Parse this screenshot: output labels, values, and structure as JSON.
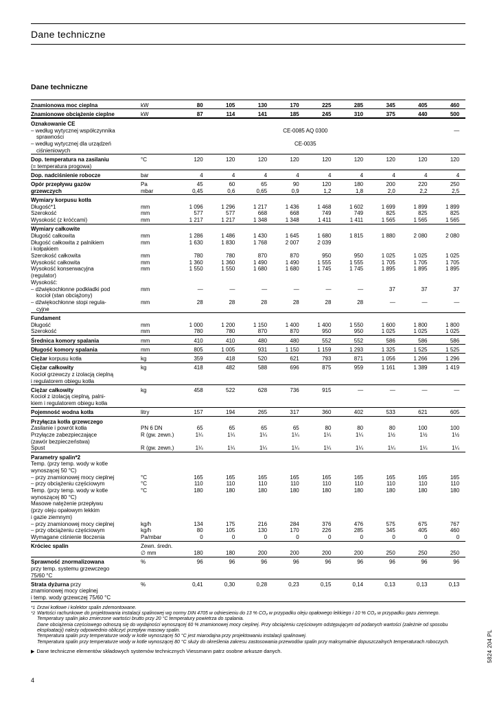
{
  "page": {
    "header_title": "Dane techniczne",
    "section_title": "Dane techniczne",
    "page_number": "4",
    "doc_code": "5824 204 PL"
  },
  "table": {
    "rows": [
      {
        "t": 1,
        "b": "Znamionowa moc cieplna",
        "u": "kW",
        "bv": true,
        "v": [
          "80",
          "105",
          "130",
          "170",
          "225",
          "285",
          "345",
          "405",
          "460"
        ]
      },
      {
        "t": 1,
        "b": "Znamionowe obciążenie cieplne",
        "u": "kW",
        "bv": true,
        "v": [
          "87",
          "114",
          "141",
          "185",
          "245",
          "310",
          "375",
          "440",
          "500"
        ]
      },
      {
        "t": 2,
        "b": "Oznakowanie CE"
      },
      {
        "r": "– według wytycznej współczynnika",
        "span8": "CE-0085 AQ 0300",
        "last": "—"
      },
      {
        "r": "sprawności",
        "ind": true
      },
      {
        "r": "– według wytycznej dla urządzeń",
        "span8": "CE-0035",
        "last": ""
      },
      {
        "r": "ciśnieniowych",
        "ind": true
      },
      {
        "t": 1,
        "b": "Dop. temperatura na zasilaniu",
        "u": "°C",
        "v": [
          "120",
          "120",
          "120",
          "120",
          "120",
          "120",
          "120",
          "120",
          "120"
        ]
      },
      {
        "r": "(= temperatura progowa)"
      },
      {
        "t": 1,
        "b": "Dop. nadciśnienie robocze",
        "u": "bar",
        "v": [
          "4",
          "4",
          "4",
          "4",
          "4",
          "4",
          "4",
          "4",
          "4"
        ]
      },
      {
        "t": 1,
        "b": "Opór przepływu gazów",
        "u": "Pa",
        "v": [
          "45",
          "60",
          "65",
          "90",
          "120",
          "180",
          "200",
          "220",
          "250"
        ]
      },
      {
        "b": "grzewczych",
        "u": "mbar",
        "v": [
          "0,45",
          "0,6",
          "0,65",
          "0,9",
          "1,2",
          "1,8",
          "2,0",
          "2,2",
          "2,5"
        ]
      },
      {
        "t": 1,
        "b": "Wymiary korpusu kotła"
      },
      {
        "r": "Długość*1",
        "u": "mm",
        "v": [
          "1 096",
          "1 296",
          "1 217",
          "1 436",
          "1 468",
          "1 602",
          "1 699",
          "1 899",
          "1 899"
        ]
      },
      {
        "r": "Szerokość",
        "u": "mm",
        "v": [
          "577",
          "577",
          "668",
          "668",
          "749",
          "749",
          "825",
          "825",
          "825"
        ]
      },
      {
        "r": "Wysokość (z króćcami)",
        "u": "mm",
        "v": [
          "1 217",
          "1 217",
          "1 348",
          "1 348",
          "1 411",
          "1 411",
          "1 565",
          "1 565",
          "1 565"
        ]
      },
      {
        "t": 1,
        "b": "Wymiary całkowite"
      },
      {
        "r": "Długość całkowita",
        "u": "mm",
        "v": [
          "1 286",
          "1 486",
          "1 430",
          "1 645",
          "1 680",
          "1 815",
          "1 880",
          "2 080",
          "2 080"
        ]
      },
      {
        "r": "Długość całkowita z palnikiem",
        "u": "mm",
        "v": [
          "1 630",
          "1 830",
          "1 768",
          "2 007",
          "2 039",
          "",
          "",
          "",
          ""
        ]
      },
      {
        "r": "i kołpakiem"
      },
      {
        "r": "Szerokość całkowita",
        "u": "mm",
        "v": [
          "780",
          "780",
          "870",
          "870",
          "950",
          "950",
          "1 025",
          "1 025",
          "1 025"
        ]
      },
      {
        "r": "Wysokość całkowita",
        "u": "mm",
        "v": [
          "1 360",
          "1 360",
          "1 490",
          "1 490",
          "1 555",
          "1 555",
          "1 705",
          "1 705",
          "1 705"
        ]
      },
      {
        "r": "Wysokość konserwacyjna",
        "u": "mm",
        "v": [
          "1 550",
          "1 550",
          "1 680",
          "1 680",
          "1 745",
          "1 745",
          "1 895",
          "1 895",
          "1 895"
        ]
      },
      {
        "r": "(regulator)"
      },
      {
        "r": "Wysokość:"
      },
      {
        "r": "– dźwiękochłonne podkładki pod",
        "u": "mm",
        "v": [
          "—",
          "—",
          "—",
          "—",
          "—",
          "—",
          "37",
          "37",
          "37"
        ]
      },
      {
        "r": "kocioł (stan obciążony)",
        "ind": true
      },
      {
        "r": "– dźwiękochłonne stopi regula-",
        "u": "mm",
        "v": [
          "28",
          "28",
          "28",
          "28",
          "28",
          "28",
          "—",
          "—",
          "—"
        ]
      },
      {
        "r": "cyjne",
        "ind": true
      },
      {
        "t": 1,
        "b": "Fundament"
      },
      {
        "r": "Długość",
        "u": "mm",
        "v": [
          "1 000",
          "1 200",
          "1 150",
          "1 400",
          "1 400",
          "1 550",
          "1 600",
          "1 800",
          "1 800"
        ]
      },
      {
        "r": "Szerokość",
        "u": "mm",
        "v": [
          "780",
          "780",
          "870",
          "870",
          "950",
          "950",
          "1 025",
          "1 025",
          "1 025"
        ]
      },
      {
        "t": 1,
        "b": "Średnica komory spalania",
        "u": "mm",
        "v": [
          "410",
          "410",
          "480",
          "480",
          "552",
          "552",
          "586",
          "586",
          "586"
        ]
      },
      {
        "t": 1,
        "b": "Długość komory spalania",
        "u": "mm",
        "v": [
          "805",
          "1 005",
          "931",
          "1 150",
          "1 159",
          "1 293",
          "1 325",
          "1 525",
          "1 525"
        ]
      },
      {
        "t": 1,
        "b": "Ciężar",
        "r": "korpusu kotła",
        "u": "kg",
        "v": [
          "359",
          "418",
          "520",
          "621",
          "793",
          "871",
          "1 056",
          "1 266",
          "1 296"
        ]
      },
      {
        "t": 1,
        "b": "Ciężar całkowity",
        "u": "kg",
        "v": [
          "418",
          "482",
          "588",
          "696",
          "875",
          "959",
          "1 161",
          "1 389",
          "1 419"
        ]
      },
      {
        "r": "Kocioł grzewczy z izolacją cieplną"
      },
      {
        "r": "i regulatorem obiegu kotła"
      },
      {
        "t": 1,
        "b": "Ciężar całkowity",
        "u": "kg",
        "v": [
          "458",
          "522",
          "628",
          "736",
          "915",
          "—",
          "—",
          "—",
          "—"
        ]
      },
      {
        "r": "Kocioł z izolacją cieplną, palni-"
      },
      {
        "r": "kiem i regulatorem obiegu kotła"
      },
      {
        "t": 1,
        "b": "Pojemność wodna kotła",
        "u": "litry",
        "v": [
          "157",
          "194",
          "265",
          "317",
          "360",
          "402",
          "533",
          "621",
          "605"
        ]
      },
      {
        "t": 1,
        "b": "Przyłącza kotła grzewczego"
      },
      {
        "r": "Zasilanie i powrót kotła",
        "u": "PN 6 DN",
        "v": [
          "65",
          "65",
          "65",
          "65",
          "80",
          "80",
          "80",
          "100",
          "100"
        ]
      },
      {
        "r": "Przyłącze zabezpieczające",
        "u": "R (gw. zewn.)",
        "v": [
          "1¼",
          "1¼",
          "1¼",
          "1¼",
          "1¼",
          "1¼",
          "1½",
          "1½",
          "1½"
        ]
      },
      {
        "r": "(zawór bezpieczeństwa)"
      },
      {
        "r": "Spust",
        "u": "R (gw. zewn.)",
        "v": [
          "1¼",
          "1¼",
          "1¼",
          "1¼",
          "1¼",
          "1¼",
          "1¼",
          "1¼",
          "1¼"
        ]
      },
      {
        "t": 1,
        "b": "Parametry spalin*2"
      },
      {
        "r": "Temp. (przy temp. wody w kotle"
      },
      {
        "r": "wynoszącej 50 °C)"
      },
      {
        "r": "– przy znamionowej mocy cieplnej",
        "u": "°C",
        "v": [
          "165",
          "165",
          "165",
          "165",
          "165",
          "165",
          "165",
          "165",
          "165"
        ]
      },
      {
        "r": "– przy obciążeniu częściowym",
        "u": "°C",
        "v": [
          "110",
          "110",
          "110",
          "110",
          "110",
          "110",
          "110",
          "110",
          "110"
        ]
      },
      {
        "r": "Temp. (przy temp. wody w kotle",
        "u": "°C",
        "v": [
          "180",
          "180",
          "180",
          "180",
          "180",
          "180",
          "180",
          "180",
          "180"
        ]
      },
      {
        "r": "wynoszącej 80 °C)"
      },
      {
        "r": "Masowe natężenie przepływu"
      },
      {
        "r": "(przy oleju opałowym lekkim"
      },
      {
        "r": "i gazie ziemnym)"
      },
      {
        "r": "– przy znamionowej mocy cieplnej",
        "u": "kg/h",
        "v": [
          "134",
          "175",
          "216",
          "284",
          "376",
          "476",
          "575",
          "675",
          "767"
        ]
      },
      {
        "r": "– przy obciążeniu częściowym",
        "u": "kg/h",
        "v": [
          "80",
          "105",
          "130",
          "170",
          "226",
          "285",
          "345",
          "405",
          "460"
        ]
      },
      {
        "r": "Wymagane ciśnienie tłoczenia",
        "u": "Pa/mbar",
        "v": [
          "0",
          "0",
          "0",
          "0",
          "0",
          "0",
          "0",
          "0",
          "0"
        ]
      },
      {
        "t": 1,
        "b": "Króciec spalin",
        "u": "Zewn. średn."
      },
      {
        "u": "∅ mm",
        "v": [
          "180",
          "180",
          "200",
          "200",
          "200",
          "200",
          "250",
          "250",
          "250"
        ]
      },
      {
        "t": 1,
        "b": "Sprawność znormalizowana",
        "u": "%",
        "v": [
          "96",
          "96",
          "96",
          "96",
          "96",
          "96",
          "96",
          "96",
          "96"
        ]
      },
      {
        "r": "przy temp. systemu grzewczego"
      },
      {
        "r": "75/60 °C"
      },
      {
        "t": 1,
        "b": "Strata dyżurna",
        "r": "przy",
        "u": "%",
        "v": [
          "0,41",
          "0,30",
          "0,28",
          "0,23",
          "0,15",
          "0,14",
          "0,13",
          "0,13",
          "0,13"
        ]
      },
      {
        "r": "znamionowej mocy cieplnej"
      },
      {
        "r": "i temp. wody grzewczej 75/60 °C"
      }
    ]
  },
  "footnotes": [
    {
      "m": "*1",
      "text": "Drzwi kotłowe i kolektor spalin zdemontowane."
    },
    {
      "m": "*2",
      "text": "Wartości rachunkowe do projektowania instalacji spalinowej wg normy DIN 4705 w odniesieniu do 13 % CO₂ w przypadku oleju opałowego lekkiego i 10 % CO₂ w przypadku gazu ziemnego."
    },
    {
      "text": "Temperatury spalin jako zmierzone wartości brutto przy 20 °C temperatury powietrza do spalania."
    },
    {
      "text": "Dane obciążenia częściowego odnoszą się do wydajności wynoszącej 60 % znamionowej mocy cieplnej. Przy obciążeniu częściowym odstępującym od podanych wartości (zależnie od sposobu eksploatacji) należy odpowiednio obliczyć przepływ masowy spalin."
    },
    {
      "text": "Temperatura spalin przy temperaturze wody w kotle wynoszącej 50 °C jest miarodajna przy projektowaniu instalacji spalinowej."
    },
    {
      "text": "Temperatura spalin przy temperaturze wody w kotle wynoszącej 80 °C służy do określenia zakresu zastosowania przewodów spalin przy maksymalnie dopuszczalnych temperaturach roboczych."
    }
  ],
  "pointer": {
    "marker": "▶",
    "text": "Dane techniczne elementów składowych systemów technicznych Viessmann patrz osobne arkusze danych."
  }
}
